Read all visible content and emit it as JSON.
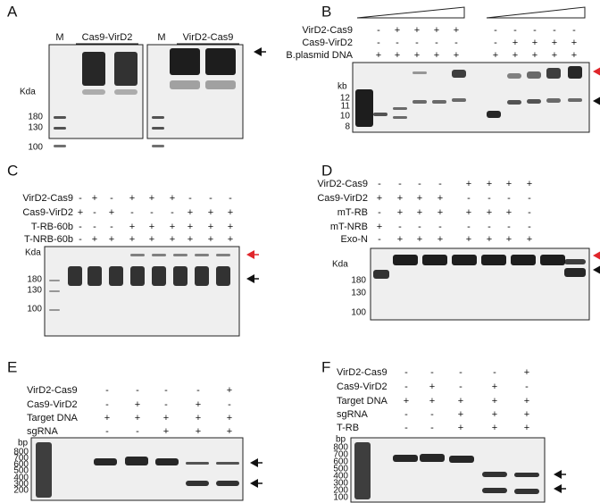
{
  "panels": [
    {
      "letter": "A",
      "headers": [
        "M",
        "Cas9-VirD2",
        "M",
        "VirD2-Cas9"
      ],
      "unit": "Kda",
      "markers": [
        "180",
        "130",
        "100"
      ]
    },
    {
      "letter": "B",
      "rows": [
        {
          "label": "VirD2-Cas9",
          "signs": [
            "-",
            "+",
            "+",
            "+",
            "+",
            "-",
            "-",
            "-",
            "-",
            "-"
          ]
        },
        {
          "label": "Cas9-VirD2",
          "signs": [
            "-",
            "-",
            "-",
            "-",
            "-",
            "-",
            "+",
            "+",
            "+",
            "+"
          ]
        },
        {
          "label": "B.plasmid DNA",
          "signs": [
            "+",
            "+",
            "+",
            "+",
            "+",
            "+",
            "+",
            "+",
            "+",
            "+"
          ]
        }
      ],
      "unit": "kb",
      "markers": [
        "12",
        "11",
        "10",
        "8"
      ]
    },
    {
      "letter": "C",
      "rows": [
        {
          "label": "VirD2-Cas9",
          "signs": [
            "-",
            "+",
            "-",
            "+",
            "+",
            "+",
            "-",
            "-",
            "-"
          ]
        },
        {
          "label": "Cas9-VirD2",
          "signs": [
            "+",
            "-",
            "+",
            "-",
            "-",
            "-",
            "+",
            "+",
            "+"
          ]
        },
        {
          "label": "T-RB-60b",
          "signs": [
            "-",
            "-",
            "-",
            "+",
            "+",
            "+",
            "+",
            "+",
            "+"
          ]
        },
        {
          "label": "T-NRB-60b",
          "signs": [
            "-",
            "+",
            "+",
            "+",
            "+",
            "+",
            "+",
            "+",
            "+"
          ]
        }
      ],
      "unit": "Kda",
      "markers": [
        "180",
        "130",
        "100"
      ]
    },
    {
      "letter": "D",
      "rows": [
        {
          "label": "VirD2-Cas9",
          "signs": [
            "-",
            "-",
            "-",
            "-",
            "+",
            "+",
            "+",
            "+"
          ]
        },
        {
          "label": "Cas9-VirD2",
          "signs": [
            "+",
            "+",
            "+",
            "+",
            "-",
            "-",
            "-",
            "-"
          ]
        },
        {
          "label": "mT-RB",
          "signs": [
            "-",
            "+",
            "+",
            "+",
            "+",
            "+",
            "+",
            "-"
          ]
        },
        {
          "label": "mT-NRB",
          "signs": [
            "+",
            "-",
            "-",
            "-",
            "-",
            "-",
            "-",
            "-"
          ]
        },
        {
          "label": "Exo-N",
          "signs": [
            "-",
            "+",
            "+",
            "+",
            "+",
            "+",
            "+",
            "+"
          ]
        }
      ],
      "unit": "Kda",
      "markers": [
        "180",
        "130",
        "100"
      ]
    },
    {
      "letter": "E",
      "rows": [
        {
          "label": "VirD2-Cas9",
          "signs": [
            "-",
            "-",
            "-",
            "-",
            "+"
          ]
        },
        {
          "label": "Cas9-VirD2",
          "signs": [
            "-",
            "+",
            "-",
            "+",
            "-"
          ]
        },
        {
          "label": "Target DNA",
          "signs": [
            "+",
            "+",
            "+",
            "+",
            "+"
          ]
        },
        {
          "label": "sgRNA",
          "signs": [
            "-",
            "-",
            "+",
            "+",
            "+"
          ]
        }
      ],
      "unit": "bp",
      "markers": [
        "800",
        "700",
        "600",
        "500",
        "400",
        "300",
        "200"
      ]
    },
    {
      "letter": "F",
      "rows": [
        {
          "label": "VirD2-Cas9",
          "signs": [
            "-",
            "-",
            "-",
            "-",
            "+"
          ]
        },
        {
          "label": "Cas9-VirD2",
          "signs": [
            "-",
            "+",
            "-",
            "+",
            "-"
          ]
        },
        {
          "label": "Target DNA",
          "signs": [
            "+",
            "+",
            "+",
            "+",
            "+"
          ]
        },
        {
          "label": "sgRNA",
          "signs": [
            "-",
            "-",
            "+",
            "+",
            "+"
          ]
        },
        {
          "label": "T-RB",
          "signs": [
            "-",
            "-",
            "+",
            "+",
            "+"
          ]
        }
      ],
      "unit": "bp",
      "markers": [
        "800",
        "700",
        "600",
        "500",
        "400",
        "300",
        "200",
        "100"
      ]
    }
  ]
}
